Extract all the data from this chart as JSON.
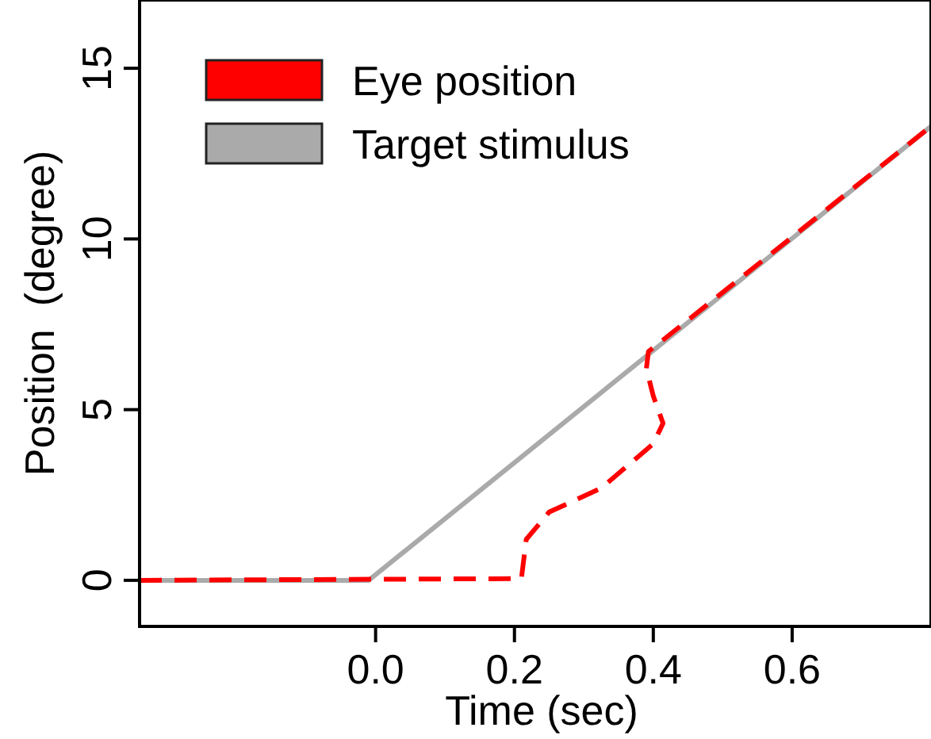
{
  "chart_data": {
    "type": "line",
    "xlabel": "Time (sec)",
    "ylabel": "Position  (degree)",
    "xlim": [
      -0.34,
      0.8
    ],
    "ylim": [
      -1.35,
      17
    ],
    "xticks": [
      {
        "value": 0,
        "label": "0.0"
      },
      {
        "value": 0.2,
        "label": "0.2"
      },
      {
        "value": 0.4,
        "label": "0.4"
      },
      {
        "value": 0.6,
        "label": "0.6"
      }
    ],
    "yticks": [
      0,
      5,
      10,
      15
    ],
    "grid": false,
    "legend": "top left",
    "marker": "none",
    "series": [
      {
        "name": "Eye position",
        "color": "#ff0000",
        "line_style": "dashed",
        "x": [
          -0.34,
          0.21,
          0.217,
          0.25,
          0.325,
          0.4,
          0.414,
          0.4,
          0.39,
          0.393,
          0.8
        ],
        "values": [
          0,
          0.05,
          1.2,
          2.0,
          2.7,
          4.0,
          4.6,
          5.4,
          6.2,
          6.7,
          13.3
        ]
      },
      {
        "name": "Target stimulus",
        "color": "#aaaaaa",
        "line_style": "solid",
        "x": [
          -0.34,
          -0.01,
          0.8
        ],
        "values": [
          0,
          0,
          13.3
        ]
      }
    ]
  }
}
